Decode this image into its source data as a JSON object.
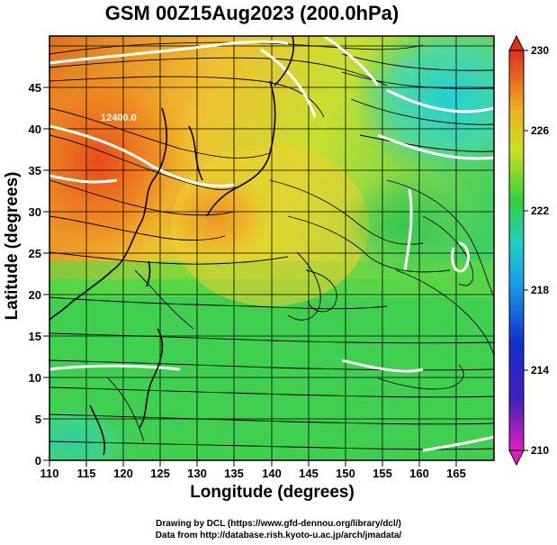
{
  "title": "GSM 00Z15Aug2023 (200.0hPa)",
  "x_axis": {
    "label": "Longitude (degrees)",
    "ticks": [
      "110",
      "115",
      "120",
      "125",
      "130",
      "135",
      "140",
      "145",
      "150",
      "155",
      "160",
      "165"
    ]
  },
  "y_axis": {
    "label": "Latitude (degrees)",
    "ticks": [
      "0",
      "5",
      "10",
      "15",
      "20",
      "25",
      "30",
      "35",
      "40",
      "45"
    ]
  },
  "colorbar": {
    "ticks": [
      "210",
      "214",
      "218",
      "222",
      "226",
      "230"
    ],
    "gradient": [
      "#e020c0",
      "#3030c0",
      "#1898e8",
      "#20d0c8",
      "#40d840",
      "#e8e820",
      "#f0a020",
      "#e03018"
    ]
  },
  "contour_label": "12400.0",
  "credits": {
    "line1": "Drawing by DCL (https://www.gfd-dennou.org/library/dcl/)",
    "line2": "Data from http://database.rish.kyoto-u.ac.jp/arch/jmadata/"
  }
}
